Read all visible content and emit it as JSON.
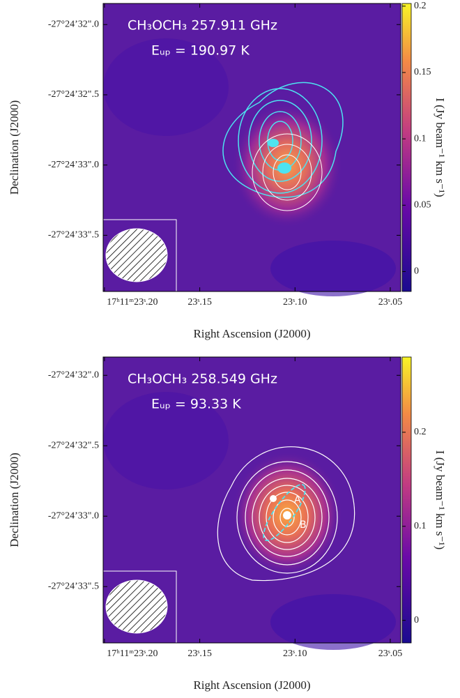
{
  "chart_data": [
    {
      "type": "image",
      "title": "CH₃OCH₃ 257.911 GHz",
      "subtitle": "Eᵤₚ = 190.97 K",
      "x_label": "Right Ascension (J2000)",
      "y_label": "Declination (J2000)",
      "xlim": [
        23.2007,
        23.0445
      ],
      "xticks": [
        {
          "value": 23.2,
          "label": "17ʰ11ᵐ23ˢ.20"
        },
        {
          "value": 23.15,
          "label": "23ˢ.15"
        },
        {
          "value": 23.1,
          "label": "23ˢ.10"
        },
        {
          "value": 23.05,
          "label": "23ˢ.05"
        }
      ],
      "ylim": [
        33.9,
        31.85
      ],
      "yticks": [
        {
          "value": 32.0,
          "label": "-27°24’32\".0"
        },
        {
          "value": 32.5,
          "label": "-27°24’32\".5"
        },
        {
          "value": 33.0,
          "label": "-27°24’33\".0"
        },
        {
          "value": 33.5,
          "label": "-27°24’33\".5"
        }
      ],
      "colorbar_label": "I (Jy beam⁻¹ km s⁻¹)",
      "clim": [
        -0.015,
        0.202
      ],
      "cticks": [
        0,
        0.05,
        0.1,
        0.15,
        0.2
      ]
    },
    {
      "type": "image",
      "title": "CH₃OCH₃ 258.549 GHz",
      "subtitle": "Eᵤₚ = 93.33 K",
      "x_label": "Right Ascension (J2000)",
      "y_label": "Declination (J2000)",
      "xlim": [
        23.2007,
        23.0445
      ],
      "xticks": [
        {
          "value": 23.2,
          "label": "17ʰ11ᵐ23ˢ.20"
        },
        {
          "value": 23.15,
          "label": "23ˢ.15"
        },
        {
          "value": 23.1,
          "label": "23ˢ.10"
        },
        {
          "value": 23.05,
          "label": "23ˢ.05"
        }
      ],
      "ylim": [
        33.9,
        31.87
      ],
      "yticks": [
        {
          "value": 32.0,
          "label": "-27°24’32\".0"
        },
        {
          "value": 32.5,
          "label": "-27°24’32\".5"
        },
        {
          "value": 33.0,
          "label": "-27°24’33\".0"
        },
        {
          "value": 33.5,
          "label": "-27°24’33\".5"
        }
      ],
      "colorbar_label": "I (Jy beam⁻¹ km s⁻¹)",
      "clim": [
        -0.024,
        0.28
      ],
      "cticks": [
        0,
        0.1,
        0.2
      ],
      "annotations": [
        "A",
        "B"
      ]
    }
  ]
}
